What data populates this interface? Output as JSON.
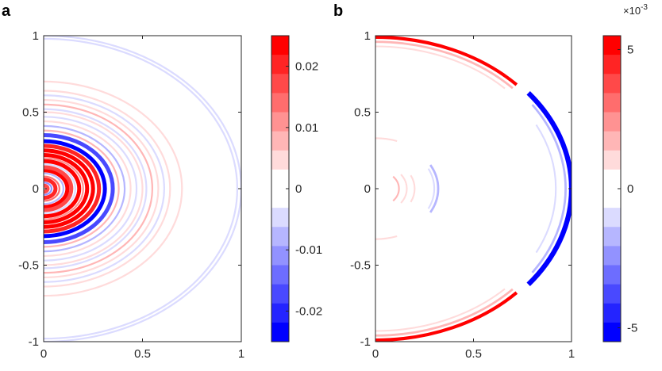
{
  "chart_data": [
    {
      "type": "heatmap",
      "panel_label": "a",
      "xlim": [
        0,
        1
      ],
      "ylim": [
        -1,
        1
      ],
      "x_ticks": [
        "0",
        "0.5",
        "1"
      ],
      "y_ticks": [
        "1",
        "0.5",
        "0",
        "-0.5",
        "-1"
      ],
      "colorbar": {
        "range": [
          -0.025,
          0.025
        ],
        "levels": 16,
        "tick_labels": [
          "0.02",
          "0.01",
          "0",
          "-0.01",
          "-0.02"
        ],
        "tick_values": [
          0.02,
          0.01,
          0,
          -0.01,
          -0.02
        ],
        "exponent_label": ""
      },
      "rings": [
        {
          "r": 0.02,
          "v": 0.018
        },
        {
          "r": 0.04,
          "v": -0.01
        },
        {
          "r": 0.06,
          "v": 0.02
        },
        {
          "r": 0.08,
          "v": 0.014
        },
        {
          "r": 0.1,
          "v": -0.008
        },
        {
          "r": 0.12,
          "v": 0.022
        },
        {
          "r": 0.14,
          "v": 0.018
        },
        {
          "r": 0.16,
          "v": -0.006
        },
        {
          "r": 0.18,
          "v": 0.024
        },
        {
          "r": 0.2,
          "v": 0.012
        },
        {
          "r": 0.22,
          "v": 0.024
        },
        {
          "r": 0.25,
          "v": 0.025
        },
        {
          "r": 0.28,
          "v": 0.02
        },
        {
          "r": 0.31,
          "v": -0.022
        },
        {
          "r": 0.35,
          "v": -0.016
        },
        {
          "r": 0.38,
          "v": 0.008
        },
        {
          "r": 0.41,
          "v": -0.008
        },
        {
          "r": 0.44,
          "v": 0.006
        },
        {
          "r": 0.47,
          "v": -0.006
        },
        {
          "r": 0.5,
          "v": 0.005
        },
        {
          "r": 0.52,
          "v": -0.004
        },
        {
          "r": 0.55,
          "v": 0.007
        },
        {
          "r": 0.58,
          "v": 0.006
        },
        {
          "r": 0.61,
          "v": -0.004
        },
        {
          "r": 0.64,
          "v": 0.004
        },
        {
          "r": 0.67,
          "v": -0.003
        },
        {
          "r": 0.7,
          "v": 0.004
        },
        {
          "r": 0.73,
          "v": -0.003
        },
        {
          "r": 0.76,
          "v": 0.003
        },
        {
          "r": 0.79,
          "v": -0.003
        },
        {
          "r": 0.82,
          "v": 0.003
        },
        {
          "r": 0.85,
          "v": -0.003
        },
        {
          "r": 0.88,
          "v": 0.003
        },
        {
          "r": 0.91,
          "v": -0.002
        },
        {
          "r": 0.94,
          "v": 0.003
        },
        {
          "r": 0.98,
          "v": -0.004
        },
        {
          "r": 1.0,
          "v": -0.005
        }
      ]
    },
    {
      "type": "heatmap",
      "panel_label": "b",
      "xlim": [
        0,
        1
      ],
      "ylim": [
        -1,
        1
      ],
      "x_ticks": [
        "0",
        "0.5",
        "1"
      ],
      "y_ticks": [
        "1",
        "0.5",
        "0",
        "-0.5",
        "-1"
      ],
      "colorbar": {
        "range": [
          -5.5,
          5.5
        ],
        "levels": 16,
        "tick_labels": [
          "5",
          "0",
          "-5"
        ],
        "tick_values": [
          5,
          0,
          -5
        ],
        "exponent_label": "×10-3"
      },
      "features": [
        {
          "kind": "arc",
          "r": 0.99,
          "x_range": [
            0,
            0.72
          ],
          "v": 5.0,
          "width": 0.012
        },
        {
          "kind": "arc",
          "r": 0.96,
          "x_range": [
            0,
            0.7
          ],
          "v": 1.5,
          "width": 0.008
        },
        {
          "kind": "arc",
          "r": 0.93,
          "x_range": [
            0,
            0.66
          ],
          "v": 0.8,
          "width": 0.006
        },
        {
          "kind": "arc",
          "r": 1.0,
          "x_range": [
            0.78,
            1.0
          ],
          "v": -5.5,
          "width": 0.018
        },
        {
          "kind": "arc",
          "r": 0.97,
          "x_range": [
            0.8,
            0.97
          ],
          "v": -1.8,
          "width": 0.008
        },
        {
          "kind": "arc",
          "r": 0.92,
          "x_range": [
            0.82,
            0.92
          ],
          "v": -0.8,
          "width": 0.006
        },
        {
          "kind": "arc",
          "r": 0.72,
          "x_range": [
            0.69,
            0.72
          ],
          "v": -0.6,
          "width": 0.004
        },
        {
          "kind": "arc",
          "r": 0.33,
          "x_range": [
            0.0,
            0.11
          ],
          "v": 0.8,
          "width": 0.006
        },
        {
          "kind": "arc",
          "r": 0.3,
          "x_range": [
            0.0,
            0.1
          ],
          "v": 0.6,
          "width": 0.006
        },
        {
          "kind": "arc",
          "r": 0.12,
          "x_range": [
            0.09,
            0.12
          ],
          "v": 1.5,
          "width": 0.006
        },
        {
          "kind": "arc",
          "r": 0.16,
          "x_range": [
            0.13,
            0.16
          ],
          "v": 1.0,
          "width": 0.006
        },
        {
          "kind": "arc",
          "r": 0.2,
          "x_range": [
            0.18,
            0.2
          ],
          "v": 0.8,
          "width": 0.006
        },
        {
          "kind": "arc",
          "r": 0.32,
          "x_range": [
            0.28,
            0.32
          ],
          "v": -1.5,
          "width": 0.008
        },
        {
          "kind": "arc",
          "r": 0.3,
          "x_range": [
            0.27,
            0.3
          ],
          "v": -0.8,
          "width": 0.006
        }
      ]
    }
  ]
}
